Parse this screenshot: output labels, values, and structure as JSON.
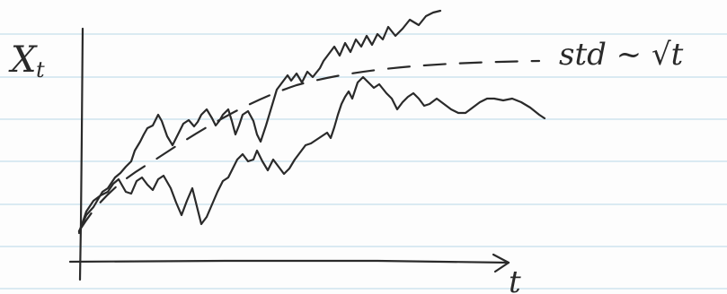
{
  "notebook": {
    "ink_color": "#2a2a2a",
    "rule_color": "#cfe3ee",
    "paper_color": "#fdfdfd"
  },
  "labels": {
    "y_axis": "X",
    "y_axis_subscript": "t",
    "x_axis": "t",
    "annotation": "std ~ √t"
  }
}
